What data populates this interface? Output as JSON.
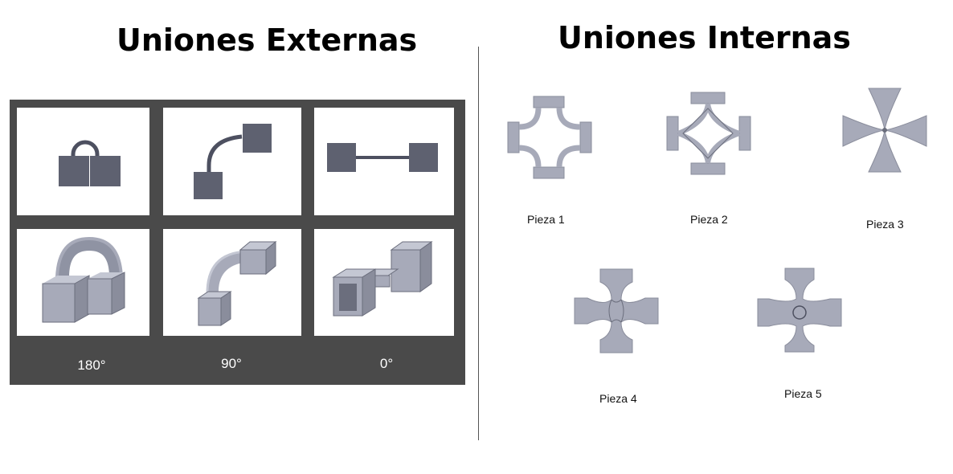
{
  "left": {
    "title": "Uniones Externas",
    "angles": [
      "180°",
      "90°",
      "0°"
    ]
  },
  "right": {
    "title": "Uniones Internas",
    "pieces": [
      {
        "label": "Pieza 1"
      },
      {
        "label": "Pieza 2"
      },
      {
        "label": "Pieza 3"
      },
      {
        "label": "Pieza 4"
      },
      {
        "label": "Pieza 5"
      }
    ]
  },
  "colors": {
    "panel": "#4a4a4a",
    "shape_dark": "#5e6170",
    "shape_light": "#a7aab9",
    "shape_edge": "#4d5060"
  }
}
